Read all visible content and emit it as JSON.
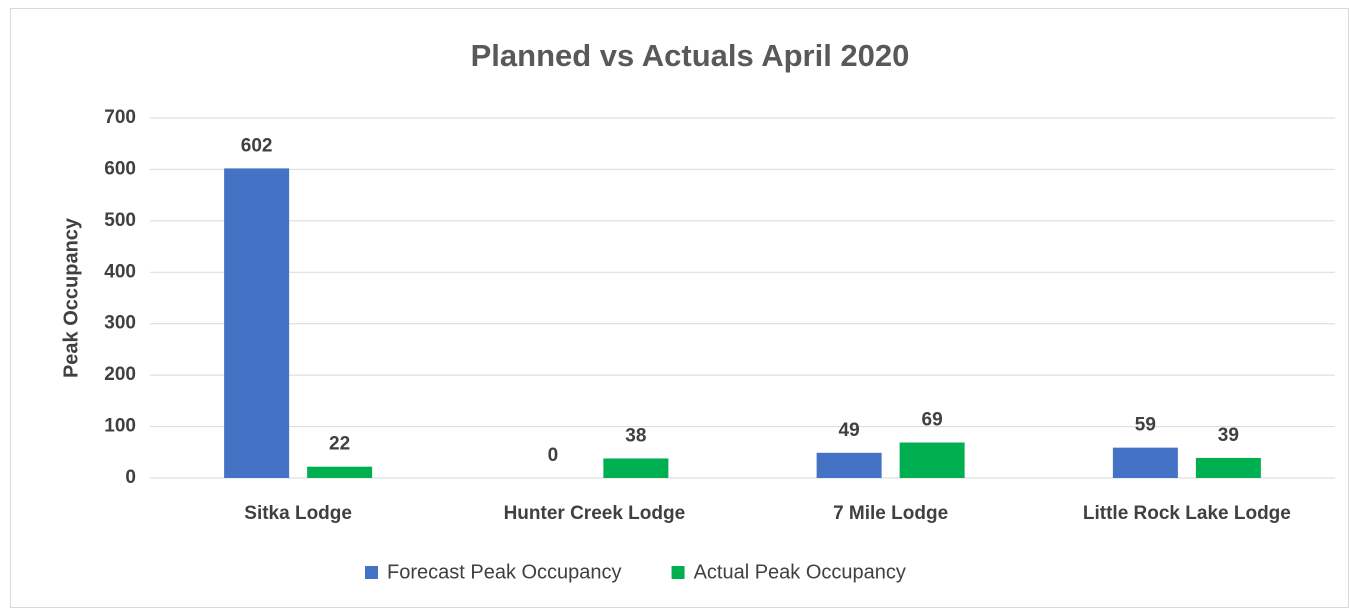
{
  "chart_data": {
    "type": "bar",
    "title": "Planned vs Actuals April 2020",
    "y_label": "Peak Occupancy",
    "categories": [
      "Sitka Lodge",
      "Hunter Creek Lodge",
      "7 Mile Lodge",
      "Little Rock Lake Lodge"
    ],
    "series": [
      {
        "name": "Forecast Peak Occupancy",
        "color": "#4472c4",
        "values": [
          602,
          0,
          49,
          59
        ]
      },
      {
        "name": "Actual Peak Occupancy",
        "color": "#00b050",
        "values": [
          22,
          38,
          69,
          39
        ]
      }
    ],
    "ylim": [
      0,
      700
    ],
    "yticks": [
      0,
      100,
      200,
      300,
      400,
      500,
      600,
      700
    ],
    "grid": true,
    "legend": "bottom"
  }
}
